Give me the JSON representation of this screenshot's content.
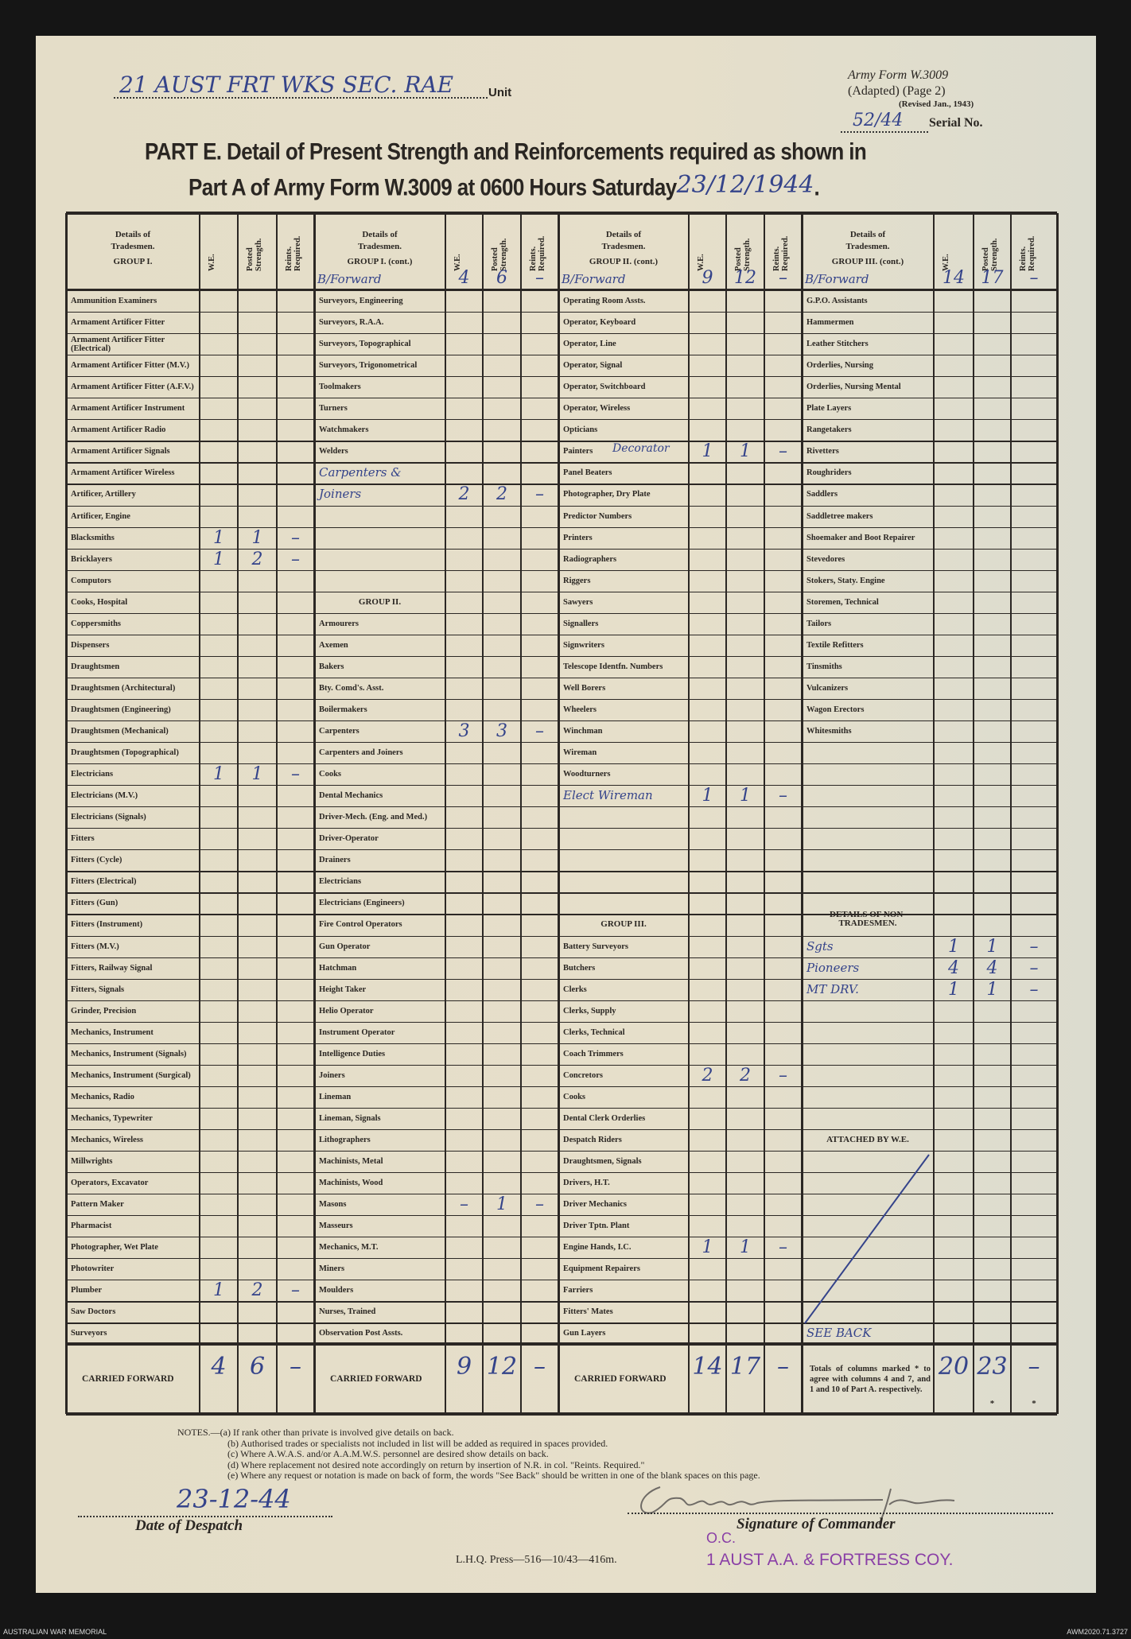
{
  "form": {
    "unit_value": "21 AUST FRT WKS SEC. RAE",
    "unit_label": "Unit",
    "form_name": "Army Form W.3009",
    "form_adapted": "(Adapted) (Page 2)",
    "form_revised": "(Revised Jan., 1943)",
    "serial_value": "52/44",
    "serial_label": "Serial No.",
    "title_line1": "PART E.  Detail of Present Strength and Reinforcements required as shown in",
    "title_line2": "Part A of Army Form W.3009 at 0600 Hours Saturday",
    "title_date": "23/12/1944",
    "title_end": "."
  },
  "table": {
    "col_we": "W.E.",
    "col_posted": "Posted Strength.",
    "col_reinf": "Reints. Required.",
    "groups": [
      {
        "header": [
          "Details of",
          "Tradesmen.",
          "GROUP I."
        ],
        "brought_forward": null,
        "rows": [
          {
            "label": "Ammunition Examiners"
          },
          {
            "label": "Armament Artificer Fitter"
          },
          {
            "label": "Armament Artificer Fitter (Electrical)"
          },
          {
            "label": "Armament Artificer Fitter (M.V.)"
          },
          {
            "label": "Armament Artificer Fitter (A.F.V.)"
          },
          {
            "label": "Armament Artificer Instrument"
          },
          {
            "label": "Armament Artificer Radio"
          },
          {
            "label": "Armament Artificer Signals"
          },
          {
            "label": "Armament Artificer Wireless"
          },
          {
            "label": "Artificer, Artillery"
          },
          {
            "label": "Artificer, Engine"
          },
          {
            "label": "Blacksmiths",
            "we": "1",
            "posted": "1",
            "reinf": "–"
          },
          {
            "label": "Bricklayers",
            "we": "1",
            "posted": "2",
            "reinf": "–"
          },
          {
            "label": "Computors"
          },
          {
            "label": "Cooks, Hospital"
          },
          {
            "label": "Coppersmiths"
          },
          {
            "label": "Dispensers"
          },
          {
            "label": "Draughtsmen"
          },
          {
            "label": "Draughtsmen (Architectural)"
          },
          {
            "label": "Draughtsmen (Engineering)"
          },
          {
            "label": "Draughtsmen (Mechanical)"
          },
          {
            "label": "Draughtsmen (Topographical)"
          },
          {
            "label": "Electricians",
            "we": "1",
            "posted": "1",
            "reinf": "–"
          },
          {
            "label": "Electricians (M.V.)"
          },
          {
            "label": "Electricians (Signals)"
          },
          {
            "label": "Fitters"
          },
          {
            "label": "Fitters (Cycle)"
          },
          {
            "label": "Fitters (Electrical)"
          },
          {
            "label": "Fitters (Gun)"
          },
          {
            "label": "Fitters (Instrument)"
          },
          {
            "label": "Fitters (M.V.)"
          },
          {
            "label": "Fitters, Railway Signal"
          },
          {
            "label": "Fitters, Signals"
          },
          {
            "label": "Grinder, Precision"
          },
          {
            "label": "Mechanics, Instrument"
          },
          {
            "label": "Mechanics, Instrument (Signals)"
          },
          {
            "label": "Mechanics, Instrument (Surgical)"
          },
          {
            "label": "Mechanics, Radio"
          },
          {
            "label": "Mechanics, Typewriter"
          },
          {
            "label": "Mechanics, Wireless"
          },
          {
            "label": "Millwrights"
          },
          {
            "label": "Operators, Excavator"
          },
          {
            "label": "Pattern Maker"
          },
          {
            "label": "Pharmacist"
          },
          {
            "label": "Photographer, Wet Plate"
          },
          {
            "label": "Photowriter"
          },
          {
            "label": "Plumber",
            "we": "1",
            "posted": "2",
            "reinf": "–"
          },
          {
            "label": "Saw Doctors"
          },
          {
            "label": "Surveyors"
          }
        ],
        "carried_forward": {
          "label": "CARRIED FORWARD",
          "we": "4",
          "posted": "6",
          "reinf": "–"
        }
      },
      {
        "header": [
          "Details of",
          "Tradesmen.",
          "GROUP I. (cont.)"
        ],
        "brought_forward": {
          "label": "B/Forward",
          "we": "4",
          "posted": "6",
          "reinf": "–"
        },
        "rows": [
          {
            "label": "Surveyors, Engineering"
          },
          {
            "label": "Surveyors, R.A.A."
          },
          {
            "label": "Surveyors, Topographical"
          },
          {
            "label": "Surveyors, Trigonometrical"
          },
          {
            "label": "Toolmakers"
          },
          {
            "label": "Turners"
          },
          {
            "label": "Watchmakers"
          },
          {
            "label": "Welders"
          },
          {
            "label": "Carpenters &",
            "hand": true
          },
          {
            "label": "Joiners",
            "hand": true,
            "we": "2",
            "posted": "2",
            "reinf": "–"
          },
          {
            "label": ""
          },
          {
            "label": ""
          },
          {
            "label": ""
          },
          {
            "label": ""
          },
          {
            "label": "GROUP II.",
            "heading": true
          },
          {
            "label": "Armourers"
          },
          {
            "label": "Axemen"
          },
          {
            "label": "Bakers"
          },
          {
            "label": "Bty. Comd's. Asst."
          },
          {
            "label": "Boilermakers"
          },
          {
            "label": "Carpenters",
            "we": "3",
            "posted": "3",
            "reinf": "–"
          },
          {
            "label": "Carpenters and Joiners"
          },
          {
            "label": "Cooks"
          },
          {
            "label": "Dental Mechanics"
          },
          {
            "label": "Driver-Mech. (Eng. and Med.)"
          },
          {
            "label": "Driver-Operator"
          },
          {
            "label": "Drainers"
          },
          {
            "label": "Electricians"
          },
          {
            "label": "Electricians (Engineers)"
          },
          {
            "label": "Fire Control Operators"
          },
          {
            "label": "Gun Operator"
          },
          {
            "label": "Hatchman"
          },
          {
            "label": "Height Taker"
          },
          {
            "label": "Helio Operator"
          },
          {
            "label": "Instrument Operator"
          },
          {
            "label": "Intelligence Duties"
          },
          {
            "label": "Joiners"
          },
          {
            "label": "Lineman"
          },
          {
            "label": "Lineman, Signals"
          },
          {
            "label": "Lithographers"
          },
          {
            "label": "Machinists, Metal"
          },
          {
            "label": "Machinists, Wood"
          },
          {
            "label": "Masons",
            "we": "–",
            "posted": "1",
            "reinf": "–"
          },
          {
            "label": "Masseurs"
          },
          {
            "label": "Mechanics, M.T."
          },
          {
            "label": "Miners"
          },
          {
            "label": "Moulders"
          },
          {
            "label": "Nurses, Trained"
          },
          {
            "label": "Observation Post Assts."
          }
        ],
        "carried_forward": {
          "label": "CARRIED FORWARD",
          "we": "9",
          "posted": "12",
          "reinf": "–"
        }
      },
      {
        "header": [
          "Details of",
          "Tradesmen.",
          "GROUP II. (cont.)"
        ],
        "brought_forward": {
          "label": "B/Forward",
          "we": "9",
          "posted": "12",
          "reinf": "–"
        },
        "rows": [
          {
            "label": "Operating Room Assts."
          },
          {
            "label": "Operator, Keyboard"
          },
          {
            "label": "Operator, Line"
          },
          {
            "label": "Operator, Signal"
          },
          {
            "label": "Operator, Switchboard"
          },
          {
            "label": "Operator, Wireless"
          },
          {
            "label": "Opticians"
          },
          {
            "label": "Painters",
            "note": "Decorator",
            "we": "1",
            "posted": "1",
            "reinf": "–"
          },
          {
            "label": "Panel Beaters"
          },
          {
            "label": "Photographer, Dry Plate"
          },
          {
            "label": "Predictor Numbers"
          },
          {
            "label": "Printers"
          },
          {
            "label": "Radiographers"
          },
          {
            "label": "Riggers"
          },
          {
            "label": "Sawyers"
          },
          {
            "label": "Signallers"
          },
          {
            "label": "Signwriters"
          },
          {
            "label": "Telescope Identfn. Numbers"
          },
          {
            "label": "Well Borers"
          },
          {
            "label": "Wheelers"
          },
          {
            "label": "Winchman"
          },
          {
            "label": "Wireman"
          },
          {
            "label": "Woodturners"
          },
          {
            "label": "Elect Wireman",
            "hand": true,
            "we": "1",
            "posted": "1",
            "reinf": "–"
          },
          {
            "label": ""
          },
          {
            "label": ""
          },
          {
            "label": ""
          },
          {
            "label": ""
          },
          {
            "label": ""
          },
          {
            "label": "GROUP III.",
            "heading": true
          },
          {
            "label": "Battery Surveyors"
          },
          {
            "label": "Butchers"
          },
          {
            "label": "Clerks"
          },
          {
            "label": "Clerks, Supply"
          },
          {
            "label": "Clerks, Technical"
          },
          {
            "label": "Coach Trimmers"
          },
          {
            "label": "Concretors",
            "we": "2",
            "posted": "2",
            "reinf": "–"
          },
          {
            "label": "Cooks"
          },
          {
            "label": "Dental Clerk Orderlies"
          },
          {
            "label": "Despatch Riders"
          },
          {
            "label": "Draughtsmen, Signals"
          },
          {
            "label": "Drivers, H.T."
          },
          {
            "label": "Driver Mechanics"
          },
          {
            "label": "Driver Tptn. Plant"
          },
          {
            "label": "Engine Hands, I.C.",
            "we": "1",
            "posted": "1",
            "reinf": "–"
          },
          {
            "label": "Equipment Repairers"
          },
          {
            "label": "Farriers"
          },
          {
            "label": "Fitters' Mates"
          },
          {
            "label": "Gun Layers"
          }
        ],
        "carried_forward": {
          "label": "CARRIED FORWARD",
          "we": "14",
          "posted": "17",
          "reinf": "–"
        }
      },
      {
        "header": [
          "Details of",
          "Tradesmen.",
          "GROUP III. (cont.)"
        ],
        "brought_forward": {
          "label": "B/Forward",
          "we": "14",
          "posted": "17",
          "reinf": "–"
        },
        "rows": [
          {
            "label": "G.P.O. Assistants"
          },
          {
            "label": "Hammermen"
          },
          {
            "label": "Leather Stitchers"
          },
          {
            "label": "Orderlies, Nursing"
          },
          {
            "label": "Orderlies, Nursing Mental"
          },
          {
            "label": "Plate Layers"
          },
          {
            "label": "Rangetakers"
          },
          {
            "label": "Rivetters"
          },
          {
            "label": "Roughriders"
          },
          {
            "label": "Saddlers"
          },
          {
            "label": "Saddletree makers"
          },
          {
            "label": "Shoemaker and Boot Repairer"
          },
          {
            "label": "Stevedores"
          },
          {
            "label": "Stokers, Staty. Engine"
          },
          {
            "label": "Storemen, Technical"
          },
          {
            "label": "Tailors"
          },
          {
            "label": "Textile Refitters"
          },
          {
            "label": "Tinsmiths"
          },
          {
            "label": "Vulcanizers"
          },
          {
            "label": "Wagon Erectors"
          },
          {
            "label": "Whitesmiths"
          },
          {
            "label": ""
          },
          {
            "label": ""
          },
          {
            "label": ""
          },
          {
            "label": ""
          },
          {
            "label": ""
          },
          {
            "label": ""
          },
          {
            "label": ""
          },
          {
            "label": ""
          },
          {
            "label": "DETAILS OF NON-TRADESMEN.",
            "heading": true
          },
          {
            "label": "Sgts",
            "hand": true,
            "we": "1",
            "posted": "1",
            "reinf": "–"
          },
          {
            "label": "Pioneers",
            "hand": true,
            "we": "4",
            "posted": "4",
            "reinf": "–"
          },
          {
            "label": "MT DRV.",
            "hand": true,
            "we": "1",
            "posted": "1",
            "reinf": "–"
          },
          {
            "label": ""
          },
          {
            "label": ""
          },
          {
            "label": ""
          },
          {
            "label": ""
          },
          {
            "label": ""
          },
          {
            "label": ""
          },
          {
            "label": "ATTACHED BY W.E.",
            "heading": true
          },
          {
            "label": ""
          },
          {
            "label": ""
          },
          {
            "label": ""
          },
          {
            "label": ""
          },
          {
            "label": ""
          },
          {
            "label": ""
          },
          {
            "label": ""
          },
          {
            "label": ""
          },
          {
            "label": "SEE BACK",
            "hand": true
          }
        ],
        "carried_forward": {
          "label": "Totals of columns marked * to agree with columns 4 and 7, and 1 and 10 of Part A. respectively.",
          "we": "20",
          "posted": "23",
          "reinf": "–",
          "mark": "*"
        }
      }
    ]
  },
  "notes": [
    "NOTES.—(a) If rank other than private is involved give details on back.",
    "(b) Authorised trades or specialists not included in list will be added as required in spaces provided.",
    "(c) Where A.W.A.S. and/or A.A.M.W.S. personnel are desired show details on back.",
    "(d) Where replacement not desired note accordingly on return by insertion of N.R. in col. \"Reints. Required.\"",
    "(e) Where any request or notation is made on back of form, the words \"See Back\" should be written in one of the blank spaces on this page."
  ],
  "footer": {
    "despatch_date": "23-12-44",
    "despatch_label": "Date of Despatch",
    "signature_label": "Signature of Commander",
    "stamp_role": "O.C.",
    "stamp_unit": "1 AUST A.A. & FORTRESS COY.",
    "press_line": "L.H.Q. Press—516—10/43—416m."
  },
  "archive": {
    "left": "AUSTRALIAN WAR MEMORIAL",
    "right": "AWM2020.71.3727"
  },
  "colors": {
    "ink_blue": "#34438a",
    "stamp_purple": "#8a3fa6",
    "paper": "#e4ddc8"
  }
}
